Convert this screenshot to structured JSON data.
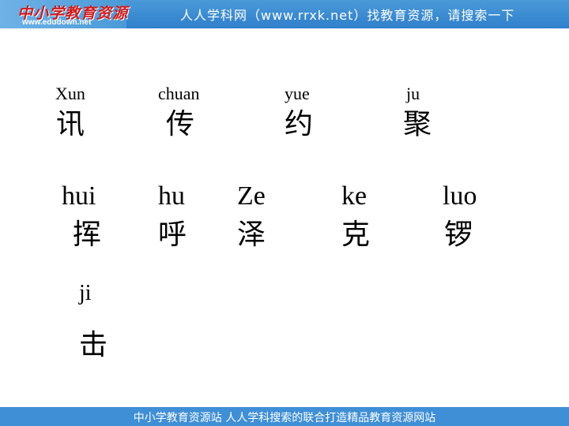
{
  "header": {
    "logo_text": "中小学教育资源",
    "logo_url": "www.edudown.net",
    "title": "人人学科网（www.rrxk.net）找教育资源，请搜索一下"
  },
  "words": [
    {
      "pinyin": "Xun",
      "hanzi": "讯"
    },
    {
      "pinyin": "chuan",
      "hanzi": "传"
    },
    {
      "pinyin": "yue",
      "hanzi": "约"
    },
    {
      "pinyin": "ju",
      "hanzi": "聚"
    },
    {
      "pinyin": "hui",
      "hanzi": "挥"
    },
    {
      "pinyin": "hu",
      "hanzi": "呼"
    },
    {
      "pinyin": "Ze",
      "hanzi": "泽"
    },
    {
      "pinyin": "ke",
      "hanzi": "克"
    },
    {
      "pinyin": "luo",
      "hanzi": "锣"
    },
    {
      "pinyin": "ji",
      "hanzi": "击"
    }
  ],
  "footer": {
    "text": "中小学教育资源站  人人学科搜索的联合打造精品教育资源网站"
  }
}
